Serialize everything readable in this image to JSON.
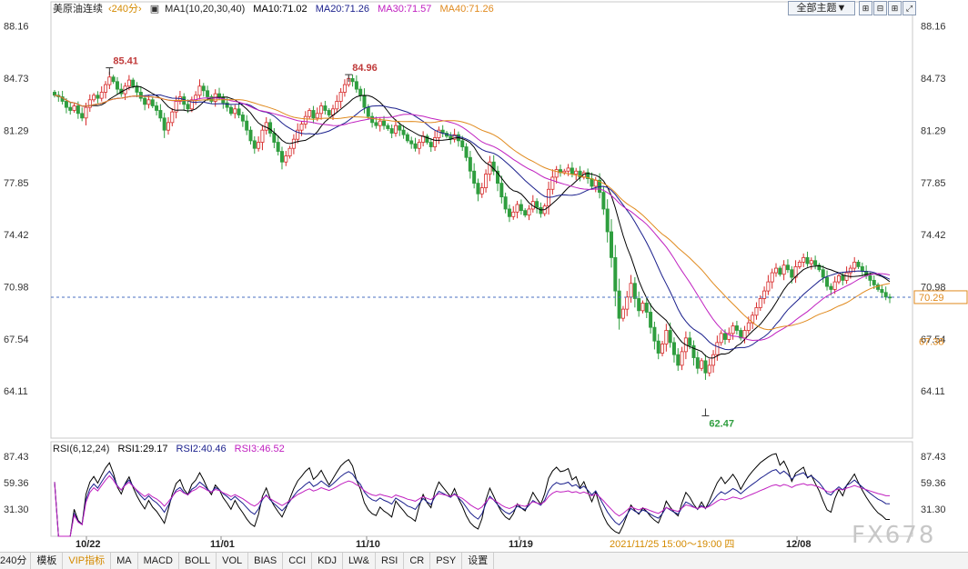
{
  "legend": {
    "title": "美原油连续",
    "period": "240分",
    "ma_label": "MA1(10,20,30,40)",
    "ma10": "MA10:71.02",
    "ma20": "MA20:71.26",
    "ma30": "MA30:71.57",
    "ma40": "MA40:71.26"
  },
  "rsi_legend": {
    "label": "RSI(6,12,24)",
    "rsi1": "RSI1:29.17",
    "rsi2": "RSI2:40.46",
    "rsi3": "RSI3:46.52"
  },
  "toolbar": {
    "theme": "全部主题",
    "chevron": "▼"
  },
  "tabs": [
    "240分",
    "模板",
    "VIP指标",
    "MA",
    "MACD",
    "BOLL",
    "VOL",
    "BIAS",
    "CCI",
    "KDJ",
    "LW&",
    "RSI",
    "CR",
    "PSY",
    "设置"
  ],
  "watermark": "FX678",
  "colors": {
    "up": "#d72a2a",
    "down": "#2f9e3f",
    "ma10": "#000000",
    "ma20": "#1a1f8c",
    "ma30": "#c020c0",
    "ma40": "#e08a1e",
    "price_line": "#4a6fc0"
  },
  "chart_data": {
    "type": "candlestick",
    "price_axis": {
      "ylim": [
        61.0,
        88.8
      ],
      "ticks": [
        "88.16",
        "84.73",
        "81.29",
        "77.85",
        "74.42",
        "70.98",
        "67.54",
        "64.11"
      ]
    },
    "rsi_axis": {
      "ticks": [
        "87.43",
        "59.36",
        "31.30"
      ]
    },
    "x_ticks": [
      "10/22",
      "11/01",
      "11/10",
      "11/19",
      "12/08"
    ],
    "crosshair_time": "2021/11/25 15:00～19:00 四",
    "current_price": "70.29",
    "right_label": "67.38",
    "annotations": [
      {
        "label": "85.41",
        "value": 85.41
      },
      {
        "label": "84.96",
        "value": 84.96
      },
      {
        "label": "62.47",
        "value": 62.47
      }
    ],
    "close": [
      83.6,
      83.5,
      83.2,
      82.8,
      82.6,
      82.9,
      82.4,
      82.1,
      82.8,
      83.3,
      83.6,
      83.4,
      83.8,
      84.3,
      84.8,
      84.5,
      84.0,
      83.7,
      84.2,
      84.6,
      84.2,
      83.8,
      83.4,
      83.0,
      83.3,
      82.9,
      82.6,
      82.1,
      81.3,
      81.8,
      82.5,
      83.2,
      83.5,
      83.0,
      82.7,
      83.3,
      83.6,
      84.2,
      83.9,
      83.5,
      83.2,
      83.7,
      83.5,
      83.1,
      82.8,
      82.4,
      82.7,
      82.3,
      81.9,
      81.3,
      80.6,
      80.1,
      80.5,
      81.3,
      81.8,
      81.1,
      80.5,
      79.9,
      79.2,
      79.6,
      80.1,
      80.7,
      81.3,
      81.7,
      82.2,
      82.6,
      82.1,
      82.4,
      82.9,
      82.6,
      82.3,
      82.7,
      83.2,
      83.8,
      84.3,
      84.7,
      84.5,
      84.0,
      83.6,
      82.8,
      82.2,
      81.8,
      81.6,
      81.9,
      81.6,
      81.4,
      81.1,
      81.6,
      81.3,
      81.0,
      80.6,
      80.4,
      80.1,
      80.5,
      80.9,
      80.5,
      80.2,
      80.8,
      81.3,
      81.1,
      80.9,
      80.7,
      81.0,
      80.6,
      80.2,
      79.5,
      78.6,
      77.8,
      77.1,
      77.5,
      78.4,
      79.2,
      78.6,
      77.8,
      76.9,
      76.1,
      75.6,
      75.9,
      76.4,
      76.0,
      75.7,
      76.1,
      76.6,
      76.2,
      75.8,
      76.3,
      77.4,
      78.2,
      78.7,
      78.5,
      78.6,
      78.8,
      78.4,
      78.6,
      78.2,
      78.5,
      78.1,
      77.6,
      78.0,
      77.2,
      76.1,
      74.6,
      72.9,
      70.7,
      68.9,
      69.5,
      70.3,
      71.2,
      70.2,
      69.4,
      69.9,
      69.3,
      68.3,
      67.4,
      66.6,
      67.2,
      68.1,
      67.3,
      66.5,
      65.8,
      66.7,
      67.6,
      67.1,
      66.3,
      65.6,
      66.1,
      65.3,
      65.8,
      66.5,
      67.3,
      67.9,
      67.5,
      67.9,
      68.4,
      68.1,
      67.6,
      68.1,
      68.6,
      69.1,
      69.6,
      70.2,
      70.7,
      71.3,
      71.9,
      72.2,
      71.8,
      72.4,
      72.1,
      71.6,
      72.3,
      72.6,
      72.9,
      72.5,
      72.7,
      72.4,
      72.1,
      71.6,
      71.0,
      70.8,
      71.3,
      71.7,
      71.4,
      71.9,
      72.2,
      72.6,
      72.3,
      72.0,
      71.7,
      71.4,
      71.1,
      70.8,
      70.6,
      70.3,
      70.29
    ],
    "series": [
      {
        "name": "MA10",
        "period": 10
      },
      {
        "name": "MA20",
        "period": 20
      },
      {
        "name": "MA30",
        "period": 30
      },
      {
        "name": "MA40",
        "period": 40
      }
    ],
    "rsi_series": [
      {
        "name": "RSI1",
        "period": 6
      },
      {
        "name": "RSI2",
        "period": 12
      },
      {
        "name": "RSI3",
        "period": 24
      }
    ]
  }
}
